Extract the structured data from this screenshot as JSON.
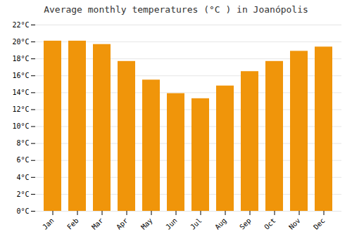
{
  "chart_data": {
    "type": "bar",
    "title": "Average monthly temperatures (°C ) in Joanópolis",
    "categories": [
      "Jan",
      "Feb",
      "Mar",
      "Apr",
      "May",
      "Jun",
      "Jul",
      "Aug",
      "Sep",
      "Oct",
      "Nov",
      "Dec"
    ],
    "values": [
      20.1,
      20.1,
      19.7,
      17.7,
      15.5,
      13.9,
      13.3,
      14.8,
      16.5,
      17.7,
      18.9,
      19.4
    ],
    "color": "#F0950A",
    "ylim": [
      0,
      22
    ],
    "yticks": [
      {
        "value": 0,
        "label": "0°C"
      },
      {
        "value": 2,
        "label": "2°C"
      },
      {
        "value": 4,
        "label": "4°C"
      },
      {
        "value": 6,
        "label": "6°C"
      },
      {
        "value": 8,
        "label": "8°C"
      },
      {
        "value": 10,
        "label": "10°C"
      },
      {
        "value": 12,
        "label": "12°C"
      },
      {
        "value": 14,
        "label": "14°C"
      },
      {
        "value": 16,
        "label": "16°C"
      },
      {
        "value": 18,
        "label": "18°C"
      },
      {
        "value": 20,
        "label": "20°C"
      },
      {
        "value": 22,
        "label": "22°C"
      }
    ],
    "grid": true
  }
}
